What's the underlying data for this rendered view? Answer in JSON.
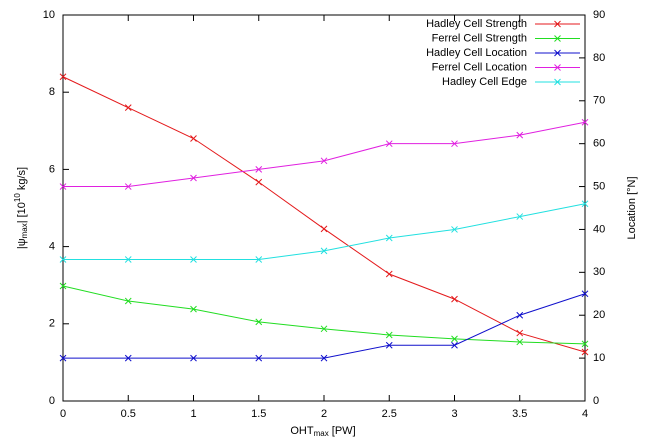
{
  "chart_data": {
    "type": "line",
    "xlabel": {
      "main": "OHT",
      "sub": "max",
      "rest": " [PW]"
    },
    "ylabel": {
      "main": "|ψ",
      "sub": "max",
      "mid": "| [10",
      "sup": "10",
      "rest": " kg/s]"
    },
    "y2label": "Location [°N]",
    "x": [
      0,
      0.5,
      1,
      1.5,
      2,
      2.5,
      3,
      3.5,
      4
    ],
    "xlim": [
      0,
      4
    ],
    "xticks": [
      0,
      0.5,
      1,
      1.5,
      2,
      2.5,
      3,
      3.5,
      4
    ],
    "ylim": [
      0,
      10
    ],
    "yticks": [
      0,
      2,
      4,
      6,
      8,
      10
    ],
    "y2lim": [
      0,
      90
    ],
    "y2ticks": [
      0,
      10,
      20,
      30,
      40,
      50,
      60,
      70,
      80,
      90
    ],
    "legend": "top-right",
    "series": [
      {
        "name": "Hadley Cell Strength",
        "color": "#e41a1c",
        "values": [
          8.4,
          7.6,
          6.8,
          5.67,
          4.46,
          3.29,
          2.64,
          1.76,
          1.27
        ]
      },
      {
        "name": "Ferrel Cell Strength",
        "color": "#22dd22",
        "values": [
          2.98,
          2.59,
          2.38,
          2.05,
          1.87,
          1.71,
          1.61,
          1.53,
          1.48
        ]
      },
      {
        "name": "Hadley Cell Location",
        "color": "#1010cc",
        "axis": "y2",
        "values": [
          10,
          10,
          10,
          10,
          10,
          13,
          13,
          20,
          25
        ]
      },
      {
        "name": "Ferrel Cell Location",
        "color": "#e020e0",
        "axis": "y2",
        "values": [
          50,
          50,
          52,
          54,
          56,
          60,
          60,
          62,
          65
        ]
      },
      {
        "name": "Hadley Cell Edge",
        "color": "#22e0e0",
        "axis": "y2",
        "values": [
          33,
          33,
          33,
          33,
          35,
          38,
          40,
          43,
          46
        ]
      }
    ]
  }
}
